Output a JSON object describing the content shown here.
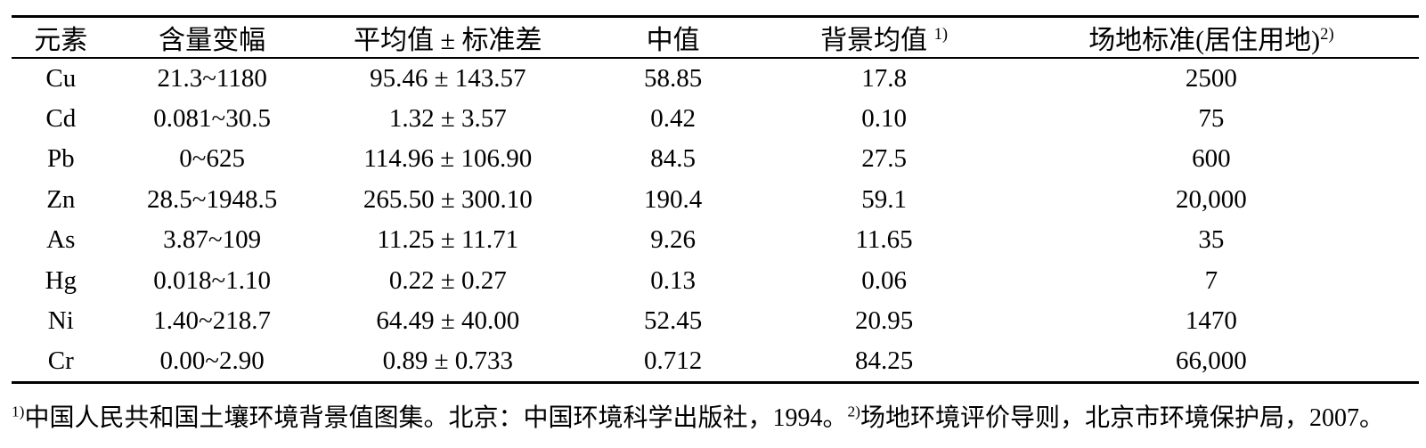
{
  "colors": {
    "text": "#000000",
    "background": "#ffffff",
    "rule": "#000000"
  },
  "table": {
    "columns": [
      {
        "label": "元素",
        "sup": ""
      },
      {
        "label": "含量变幅",
        "sup": ""
      },
      {
        "label": "平均值 ± 标准差",
        "sup": ""
      },
      {
        "label": "中值",
        "sup": ""
      },
      {
        "label": "背景均值 ",
        "sup": "1)"
      },
      {
        "label": "场地标准(居住用地)",
        "sup": "2)"
      }
    ],
    "rows": [
      [
        "Cu",
        "21.3~1180",
        "95.46 ± 143.57",
        "58.85",
        "17.8",
        "2500"
      ],
      [
        "Cd",
        "0.081~30.5",
        "1.32 ± 3.57",
        "0.42",
        "0.10",
        "75"
      ],
      [
        "Pb",
        "0~625",
        "114.96 ± 106.90",
        "84.5",
        "27.5",
        "600"
      ],
      [
        "Zn",
        "28.5~1948.5",
        "265.50 ± 300.10",
        "190.4",
        "59.1",
        "20,000"
      ],
      [
        "As",
        "3.87~109",
        "11.25 ± 11.71",
        "9.26",
        "11.65",
        "35"
      ],
      [
        "Hg",
        "0.018~1.10",
        "0.22 ± 0.27",
        "0.13",
        "0.06",
        "7"
      ],
      [
        "Ni",
        "1.40~218.7",
        "64.49 ± 40.00",
        "52.45",
        "20.95",
        "1470"
      ],
      [
        "Cr",
        "0.00~2.90",
        "0.89 ± 0.733",
        "0.712",
        "84.25",
        "66,000"
      ]
    ]
  },
  "footnote": {
    "sup1": "1)",
    "text1": "中国人民共和国土壤环境背景值图集。北京：中国环境科学出版社，1994。",
    "sup2": "2)",
    "text2": "场地环境评价导则，北京市环境保护局，2007。"
  }
}
